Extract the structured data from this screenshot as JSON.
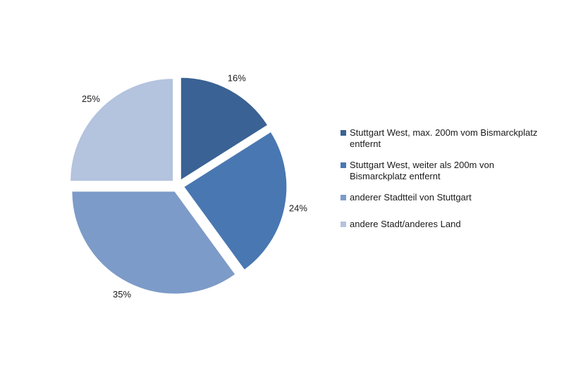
{
  "chart_data": {
    "type": "pie",
    "slices": [
      {
        "label": "Stuttgart West, max. 200m vom Bismarckplatz entfernt",
        "value": 16,
        "value_label": "16%",
        "color": "#3a6294"
      },
      {
        "label": "Stuttgart West, weiter als 200m von Bismarckplatz entfernt",
        "value": 24,
        "value_label": "24%",
        "color": "#4977b1"
      },
      {
        "label": "anderer Stadtteil von Stuttgart",
        "value": 35,
        "value_label": "35%",
        "color": "#7d9bc8"
      },
      {
        "label": "andere Stadt/anderes Land",
        "value": 25,
        "value_label": "25%",
        "color": "#b4c3de"
      }
    ],
    "legend_position": "right",
    "exploded": true
  }
}
